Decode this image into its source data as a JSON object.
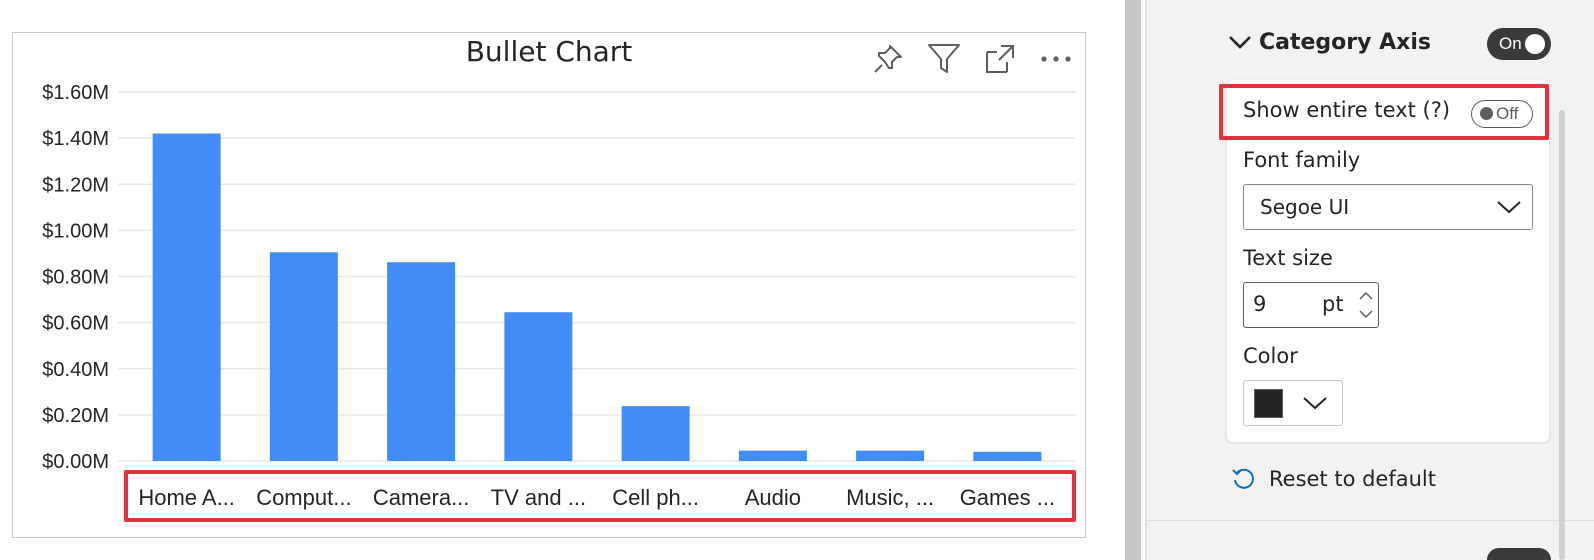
{
  "visual": {
    "title": "Bullet Chart",
    "header_icons": [
      "pin-icon",
      "filter-icon",
      "focus-mode-icon",
      "more-options-icon"
    ]
  },
  "chart_data": {
    "type": "bar",
    "title": "Bullet Chart",
    "xlabel": "",
    "ylabel": "",
    "categories": [
      "Home A...",
      "Comput...",
      "Camera...",
      "TV and ...",
      "Cell ph...",
      "Audio",
      "Music, ...",
      "Games ..."
    ],
    "values": [
      1.42,
      0.905,
      0.862,
      0.645,
      0.238,
      0.045,
      0.045,
      0.04
    ],
    "value_unit": "$M",
    "ylim": [
      0,
      1.6
    ],
    "yticks": [
      0,
      0.2,
      0.4,
      0.6,
      0.8,
      1.0,
      1.2,
      1.4,
      1.6
    ],
    "ytick_labels": [
      "$0.00M",
      "$0.20M",
      "$0.40M",
      "$0.60M",
      "$0.80M",
      "$1.00M",
      "$1.20M",
      "$1.40M",
      "$1.60M"
    ],
    "grid": true,
    "bar_color": "#418cf5",
    "highlight_color": "#e0323c"
  },
  "format_pane": {
    "section_title": "Category Axis",
    "section_toggle": "On",
    "show_entire_text": {
      "label": "Show entire text (?)",
      "toggle": "Off"
    },
    "font_family": {
      "label": "Font family",
      "value": "Segoe UI"
    },
    "text_size": {
      "label": "Text size",
      "value": "9",
      "unit": "pt"
    },
    "color": {
      "label": "Color",
      "value": "#252423"
    },
    "reset_label": "Reset to default"
  }
}
